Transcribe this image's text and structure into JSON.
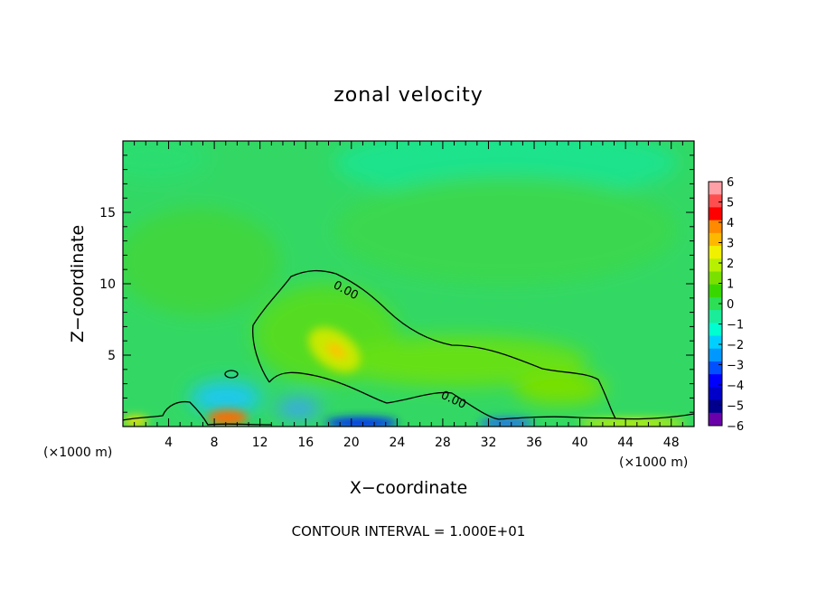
{
  "chart_data": {
    "type": "heatmap",
    "title": "zonal velocity",
    "xlabel": "X−coordinate",
    "ylabel": "Z−coordinate",
    "x_unit_left": "(×1000 m)",
    "x_unit_right": "(×1000 m)",
    "xlim": [
      0,
      50
    ],
    "ylim": [
      0,
      20
    ],
    "x_ticks": [
      4,
      8,
      12,
      16,
      20,
      24,
      28,
      32,
      36,
      40,
      44,
      48
    ],
    "y_ticks": [
      5,
      10,
      15
    ],
    "footer": "CONTOUR INTERVAL = 1.000E+01",
    "contour_labels": [
      "0.00",
      "0.00"
    ],
    "colorbar": {
      "ticks": [
        "6",
        "5",
        "4",
        "3",
        "2",
        "1",
        "0",
        "−1",
        "−2",
        "−3",
        "−4",
        "−5",
        "−6"
      ],
      "colors": [
        "#ff9fa6",
        "#ff4e4e",
        "#ff0000",
        "#ff8a00",
        "#ffb800",
        "#f0f000",
        "#b7f000",
        "#7ae000",
        "#38d700",
        "#2cdf55",
        "#1bec9a",
        "#00ffd0",
        "#00cfff",
        "#0098ff",
        "#0050ff",
        "#0000ff",
        "#0000c8",
        "#00008c",
        "#6a00aa"
      ]
    },
    "grid": false,
    "legend": "right"
  }
}
